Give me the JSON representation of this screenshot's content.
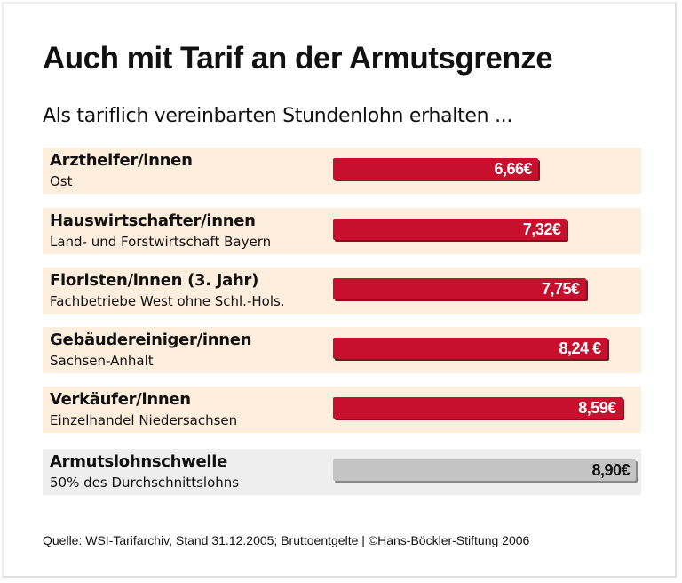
{
  "chart_data": {
    "type": "bar",
    "orientation": "horizontal",
    "title": "Auch mit Tarif an der Armutsgrenze",
    "subtitle": "Als tariflich vereinbarten Stundenlohn erhalten ...",
    "categories": [
      {
        "label": "Arzthelfer/innen",
        "sublabel": "Ost"
      },
      {
        "label": "Hauswirtschafter/innen",
        "sublabel": "Land- und Forstwirtschaft Bayern"
      },
      {
        "label": "Floristen/innen (3. Jahr)",
        "sublabel": "Fachbetriebe West ohne Schl.-Hols."
      },
      {
        "label": "Gebäudereiniger/innen",
        "sublabel": "Sachsen-Anhalt"
      },
      {
        "label": "Verkäufer/innen",
        "sublabel": "Einzelhandel Niedersachsen"
      },
      {
        "label": "Armutslohnschwelle",
        "sublabel": "50% des Durchschnittslohns"
      }
    ],
    "values": [
      6.66,
      7.32,
      7.75,
      8.24,
      8.59,
      8.9
    ],
    "value_labels": [
      "6,66€",
      "7,32€",
      "7,75€",
      "8,24 €",
      "8,59€",
      "8,90€"
    ],
    "unit": "€",
    "colors": {
      "bar": "#c8102e",
      "threshold_bar": "#c4c4c4",
      "row_bg": "#fdeedd",
      "threshold_row_bg": "#eeeeee"
    }
  },
  "source": "Quelle: WSI-Tarifarchiv, Stand 31.12.2005; Bruttoentgelte | ©Hans-Böckler-Stiftung 2006"
}
